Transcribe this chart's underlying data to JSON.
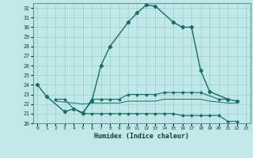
{
  "xlabel": "Humidex (Indice chaleur)",
  "background_color": "#c0e8e8",
  "grid_color": "#a0cccc",
  "line_color": "#1a6b6b",
  "ylim": [
    20,
    32.5
  ],
  "xlim": [
    -0.5,
    23.5
  ],
  "yticks": [
    20,
    21,
    22,
    23,
    24,
    25,
    26,
    27,
    28,
    29,
    30,
    31,
    32
  ],
  "main_x": [
    0,
    1,
    3,
    4,
    5,
    6,
    7,
    8,
    10,
    11,
    12,
    13,
    15,
    16,
    17,
    18,
    19,
    21,
    22
  ],
  "main_y": [
    24.0,
    22.8,
    21.2,
    21.5,
    21.1,
    22.3,
    26.0,
    28.0,
    30.5,
    31.5,
    32.3,
    32.2,
    30.5,
    30.0,
    30.0,
    25.5,
    23.3,
    22.5,
    22.3
  ],
  "flat1_x": [
    2,
    3,
    4,
    5,
    6,
    7,
    8,
    9,
    10,
    11,
    12,
    13,
    14,
    15,
    16,
    17,
    18,
    20,
    21
  ],
  "flat1_y": [
    22.5,
    22.5,
    21.5,
    21.0,
    22.5,
    22.5,
    22.5,
    22.5,
    23.0,
    23.0,
    23.0,
    23.0,
    23.2,
    23.2,
    23.2,
    23.2,
    23.2,
    22.5,
    22.5
  ],
  "flat2_x": [
    2,
    3,
    4,
    5,
    6,
    7,
    8,
    9,
    10,
    11,
    12,
    13,
    14,
    15,
    16,
    17,
    18,
    19,
    20,
    21,
    22
  ],
  "flat2_y": [
    22.3,
    22.2,
    22.1,
    22.0,
    22.1,
    22.1,
    22.1,
    22.1,
    22.3,
    22.3,
    22.3,
    22.3,
    22.5,
    22.5,
    22.5,
    22.5,
    22.5,
    22.3,
    22.2,
    22.1,
    22.1
  ],
  "bot_x": [
    5,
    6,
    7,
    8,
    9,
    10,
    11,
    12,
    13,
    14,
    15,
    16,
    17,
    18,
    19,
    20,
    21,
    22
  ],
  "bot_y": [
    21.0,
    21.0,
    21.0,
    21.0,
    21.0,
    21.0,
    21.0,
    21.0,
    21.0,
    21.0,
    21.0,
    20.8,
    20.8,
    20.8,
    20.8,
    20.8,
    20.2,
    20.2
  ]
}
